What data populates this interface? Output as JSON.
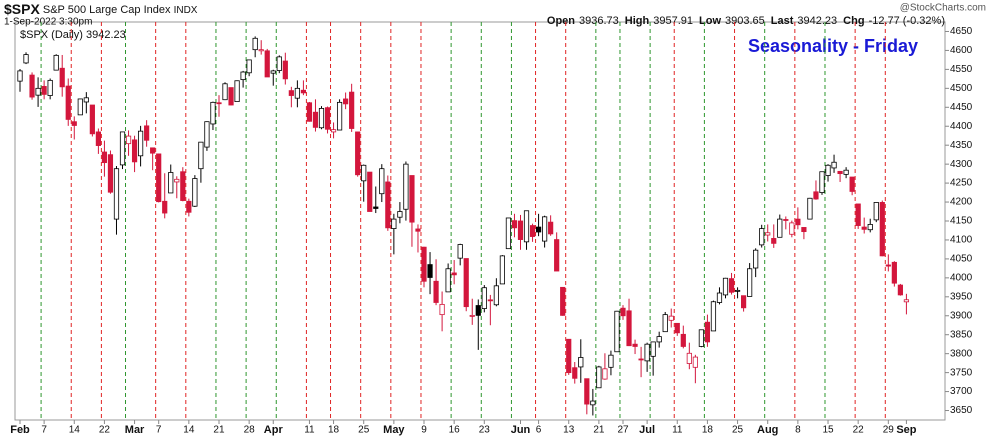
{
  "chart_data": {
    "type": "candlestick",
    "symbol": "$SPX",
    "name": "S&P 500 Large Cap Index",
    "exchange": "INDX",
    "date": "1-Sep-2022 3:30pm",
    "quote": [
      {
        "label": "Open",
        "value": "3936.73"
      },
      {
        "label": "High",
        "value": "3957.91"
      },
      {
        "label": "Low",
        "value": "3903.65"
      },
      {
        "label": "Last",
        "value": "3942.23"
      },
      {
        "label": "Chg",
        "value": "-12.77 (-0.32%)"
      }
    ],
    "source": "@StockCharts.com",
    "title": "Seasonality - Friday",
    "title_color": "#1a1ad6",
    "legend_value": "3942.23",
    "up_color": "#000000",
    "down_color": "#d3163c",
    "friday_up_color": "#2e962e",
    "friday_down_color": "#e02424",
    "grid": false,
    "categories": [
      "Feb",
      null,
      null,
      null,
      "7",
      null,
      null,
      null,
      null,
      "14",
      null,
      null,
      null,
      null,
      "22",
      null,
      null,
      null,
      null,
      "Mar",
      null,
      null,
      null,
      "7",
      null,
      null,
      null,
      null,
      "14",
      null,
      null,
      null,
      null,
      "21",
      null,
      null,
      null,
      null,
      "28",
      null,
      null,
      null,
      "Apr",
      null,
      null,
      null,
      null,
      null,
      "11",
      null,
      null,
      null,
      "18",
      null,
      null,
      null,
      null,
      "25",
      null,
      null,
      null,
      null,
      "May",
      null,
      null,
      null,
      null,
      "9",
      null,
      null,
      null,
      null,
      "16",
      null,
      null,
      null,
      null,
      "23",
      null,
      null,
      null,
      null,
      null,
      "Jun",
      null,
      null,
      "6",
      null,
      null,
      null,
      null,
      "13",
      null,
      null,
      null,
      null,
      "21",
      null,
      null,
      null,
      "27",
      null,
      null,
      null,
      "Jul",
      null,
      null,
      null,
      null,
      "11",
      null,
      null,
      null,
      null,
      "18",
      null,
      null,
      null,
      null,
      "25",
      null,
      null,
      null,
      null,
      "Aug",
      null,
      null,
      null,
      null,
      "8",
      null,
      null,
      null,
      null,
      "15",
      null,
      null,
      null,
      null,
      "22",
      null,
      null,
      null,
      null,
      "29",
      null,
      null,
      "Sep"
    ],
    "series": [
      {
        "name": "$SPX (Daily)",
        "open": [
          4519,
          4567,
          4535,
          4482,
          4505,
          4481,
          4548,
          4553,
          4506,
          4412,
          4430,
          4464,
          4456,
          4385,
          4332,
          4325,
          4155,
          4298,
          4354,
          4364,
          4322,
          4401,
          4343,
          4327,
          4202,
          4224,
          4253,
          4280,
          4202,
          4189,
          4288,
          4345,
          4406,
          4462,
          4470,
          4502,
          4465,
          4523,
          4541,
          4602,
          4599,
          4599,
          4540,
          4547,
          4572,
          4494,
          4474,
          4495,
          4462,
          4437,
          4396,
          4449,
          4385,
          4390,
          4472,
          4490,
          4385,
          4256,
          4279,
          4187,
          4222,
          4253,
          4130,
          4160,
          4181,
          4270,
          4129,
          4081,
          4035,
          3991,
          3903,
          3963,
          4013,
          4052,
          4051,
          3900,
          3927,
          3919,
          3942,
          3929,
          3984,
          4077,
          4151,
          4150,
          4095,
          4138,
          4134,
          4097,
          4147,
          4101,
          3975,
          3838,
          3763,
          3765,
          3734,
          3665,
          3710,
          3733,
          3764,
          3805,
          3920,
          3913,
          3825,
          3786,
          3781,
          3793,
          3831,
          3858,
          3888,
          3880,
          3851,
          3774,
          3764,
          3819,
          3883,
          3860,
          3935,
          3955,
          3998,
          3965,
          3953,
          3951,
          4026,
          4087,
          4113,
          4104,
          4107,
          4154,
          4115,
          4155,
          4133,
          4155,
          4227,
          4225,
          4270,
          4290,
          4281,
          4273,
          4266,
          4195,
          4134,
          4127,
          4153,
          4199,
          4034,
          4041,
          3981,
          3936.73
        ],
        "high": [
          4551,
          4595,
          4542,
          4529,
          4521,
          4526,
          4590,
          4588,
          4526,
          4426,
          4473,
          4490,
          4456,
          4394,
          4362,
          4336,
          4295,
          4385,
          4389,
          4375,
          4401,
          4416,
          4343,
          4327,
          4276,
          4299,
          4268,
          4292,
          4209,
          4271,
          4358,
          4413,
          4465,
          4482,
          4516,
          4502,
          4521,
          4546,
          4576,
          4637,
          4627,
          4604,
          4549,
          4587,
          4594,
          4504,
          4521,
          4521,
          4464,
          4471,
          4453,
          4452,
          4410,
          4471,
          4489,
          4512,
          4386,
          4299,
          4279,
          4241,
          4300,
          4270,
          4169,
          4200,
          4307,
          4270,
          4141,
          4082,
          4068,
          4049,
          3964,
          4038,
          4047,
          4090,
          4051,
          3945,
          3943,
          3981,
          3955,
          3999,
          4060,
          4158,
          4169,
          4166,
          4177,
          4143,
          4169,
          4164,
          4165,
          4120,
          3975,
          3838,
          3778,
          3838,
          3734,
          3707,
          3768,
          3801,
          3808,
          3913,
          3928,
          3945,
          3837,
          3818,
          3829,
          3832,
          3858,
          3910,
          3919,
          3880,
          3874,
          3829,
          3797,
          3863,
          3903,
          3940,
          3975,
          4000,
          4013,
          3975,
          3953,
          4039,
          4078,
          4140,
          4141,
          4141,
          4167,
          4162,
          4151,
          4186,
          4133,
          4211,
          4257,
          4280,
          4300,
          4325,
          4282,
          4292,
          4266,
          4195,
          4159,
          4156,
          4200,
          4204,
          4062,
          4044,
          3984,
          3957.91
        ],
        "low": [
          4491,
          4564,
          4470,
          4451,
          4471,
          4471,
          4547,
          4478,
          4401,
          4365,
          4430,
          4434,
          4373,
          4327,
          4267,
          4222,
          4114,
          4287,
          4322,
          4279,
          4294,
          4346,
          4284,
          4199,
          4157,
          4224,
          4210,
          4202,
          4162,
          4187,
          4251,
          4335,
          4390,
          4425,
          4469,
          4455,
          4465,
          4502,
          4532,
          4582,
          4589,
          4530,
          4507,
          4540,
          4510,
          4450,
          4450,
          4482,
          4412,
          4386,
          4392,
          4381,
          4368,
          4390,
          4445,
          4385,
          4267,
          4201,
          4175,
          4171,
          4200,
          4124,
          4062,
          4144,
          4151,
          4082,
          4067,
          3975,
          3957,
          3928,
          3859,
          3963,
          3983,
          4033,
          3912,
          3876,
          3810,
          3909,
          3875,
          3925,
          3984,
          4077,
          4107,
          4074,
          4074,
          4095,
          4110,
          4080,
          4111,
          4018,
          3900,
          3744,
          3721,
          3723,
          3640,
          3637,
          3710,
          3731,
          3743,
          3805,
          3889,
          3820,
          3799,
          3738,
          3752,
          3742,
          3816,
          3858,
          3869,
          3847,
          3814,
          3759,
          3722,
          3817,
          3818,
          3860,
          3930,
          3946,
          3956,
          3946,
          3911,
          3951,
          4002,
          4080,
          4096,
          4079,
          4107,
          4128,
          4107,
          4128,
          4102,
          4155,
          4206,
          4219,
          4254,
          4277,
          4253,
          4263,
          4218,
          4129,
          4117,
          4120,
          4147,
          4057,
          4017,
          3977,
          3953,
          3903.65
        ],
        "close": [
          4546,
          4589,
          4477,
          4500,
          4484,
          4521,
          4587,
          4504,
          4418,
          4402,
          4472,
          4475,
          4380,
          4349,
          4304,
          4226,
          4288,
          4385,
          4374,
          4306,
          4387,
          4363,
          4329,
          4201,
          4171,
          4278,
          4260,
          4204,
          4173,
          4262,
          4358,
          4412,
          4463,
          4461,
          4512,
          4456,
          4520,
          4543,
          4575,
          4632,
          4602,
          4530,
          4546,
          4583,
          4525,
          4481,
          4500,
          4488,
          4413,
          4397,
          4447,
          4392,
          4391,
          4463,
          4459,
          4394,
          4272,
          4297,
          4175,
          4183,
          4288,
          4132,
          4155,
          4175,
          4300,
          4147,
          4123,
          3991,
          4001,
          3935,
          3930,
          4024,
          4008,
          4088,
          3924,
          3901,
          3901,
          3974,
          3941,
          3979,
          4058,
          4158,
          4132,
          4101,
          4177,
          4109,
          4121,
          4161,
          4116,
          4018,
          3901,
          3750,
          3735,
          3790,
          3667,
          3675,
          3765,
          3760,
          3796,
          3912,
          3900,
          3821,
          3819,
          3785,
          3825,
          3831,
          3845,
          3903,
          3899,
          3855,
          3819,
          3801,
          3791,
          3863,
          3831,
          3937,
          3960,
          3999,
          3962,
          3967,
          3921,
          4024,
          4073,
          4130,
          4119,
          4091,
          4155,
          4152,
          4145,
          4140,
          4122,
          4210,
          4208,
          4280,
          4297,
          4305,
          4275,
          4284,
          4228,
          4138,
          4128,
          4141,
          4199,
          4058,
          4031,
          3986,
          3955,
          3942.23
        ]
      }
    ],
    "ylim": [
      3625,
      4675
    ],
    "yticks": [
      3650,
      3700,
      3750,
      3800,
      3850,
      3900,
      3950,
      4000,
      4050,
      4100,
      4150,
      4200,
      4250,
      4300,
      4350,
      4400,
      4450,
      4500,
      4550,
      4600,
      4650
    ]
  }
}
